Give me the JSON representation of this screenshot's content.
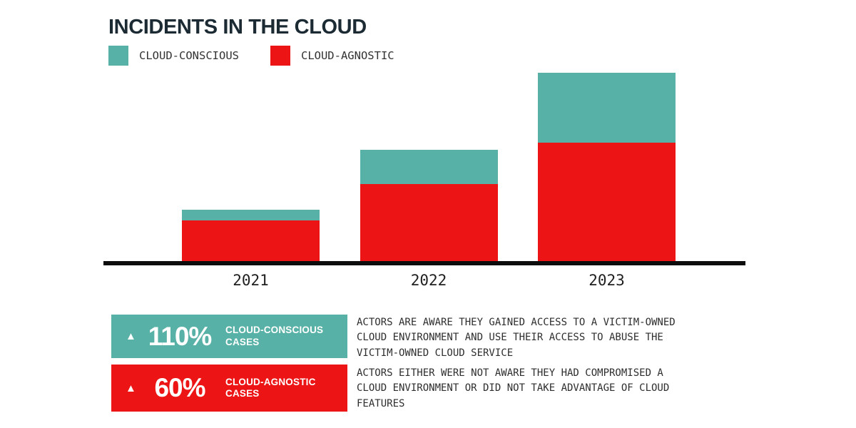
{
  "title": "INCIDENTS IN THE CLOUD",
  "colors": {
    "teal": "#58B1A6",
    "red": "#EC1414",
    "title_text": "#1B2A33",
    "body_text": "#2E2E2E",
    "axis": "#0D0D0D"
  },
  "legend": [
    {
      "label": "CLOUD-CONSCIOUS",
      "color": "#58B1A6"
    },
    {
      "label": "CLOUD-AGNOSTIC",
      "color": "#EC1414"
    }
  ],
  "chart_data": {
    "type": "bar",
    "stacked": true,
    "title": "INCIDENTS IN THE CLOUD",
    "categories": [
      "2021",
      "2022",
      "2023"
    ],
    "series": [
      {
        "name": "CLOUD-CONSCIOUS",
        "color": "#58B1A6",
        "values": [
          15,
          48,
          98
        ]
      },
      {
        "name": "CLOUD-AGNOSTIC",
        "color": "#EC1414",
        "values": [
          57,
          108,
          166
        ]
      }
    ],
    "xlabel": "",
    "ylabel": "",
    "grid": false,
    "y_axis_shown": false,
    "legend_position": "top-left",
    "value_scale": "relative units estimated from bar pixel heights (no y-axis labels shown)"
  },
  "stats": [
    {
      "arrow": "▲",
      "value": "110%",
      "label": "CLOUD-CONSCIOUS\nCASES",
      "description": "ACTORS ARE AWARE THEY GAINED ACCESS TO A VICTIM-OWNED\nCLOUD ENVIRONMENT AND USE THEIR ACCESS TO ABUSE THE\nVICTIM-OWNED CLOUD SERVICE"
    },
    {
      "arrow": "▲",
      "value": "60%",
      "label": "CLOUD-AGNOSTIC\nCASES",
      "description": "ACTORS EITHER WERE NOT AWARE THEY HAD COMPROMISED A\nCLOUD ENVIRONMENT OR DID NOT TAKE ADVANTAGE OF CLOUD\nFEATURES"
    }
  ]
}
